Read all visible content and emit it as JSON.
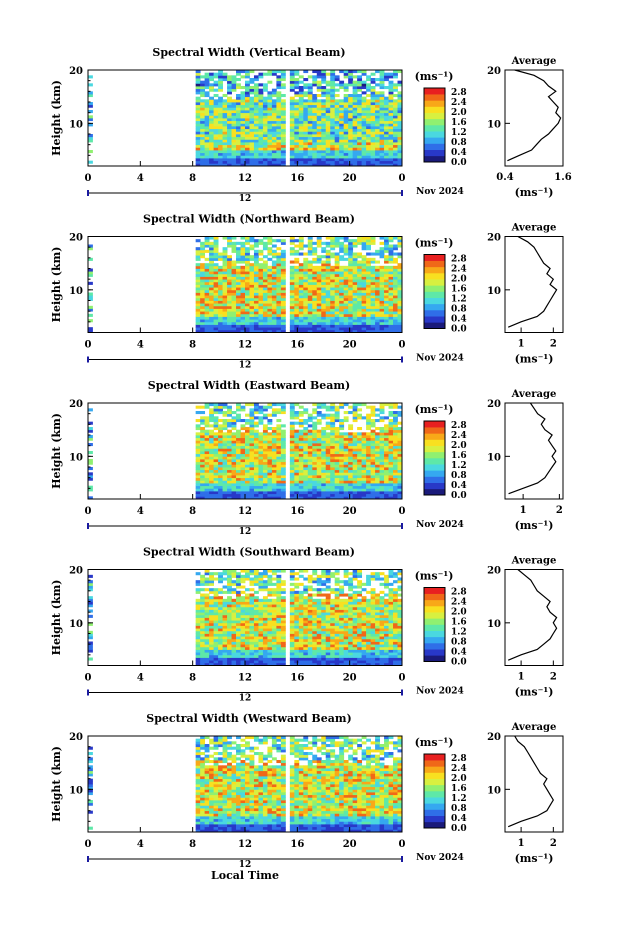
{
  "figure": {
    "xlabel_bottom": "Local Time",
    "date_label": "Nov 2024",
    "day_marker": "12",
    "average_title": "Average",
    "colorbar_unit": "(ms⁻¹)",
    "avg_xlabel": "(ms⁻¹)"
  },
  "colormap": [
    "#1a1a7a",
    "#2838c8",
    "#2f6ee8",
    "#35a8f0",
    "#4ad8e0",
    "#5ee8a8",
    "#90f070",
    "#d8f040",
    "#f8e020",
    "#f8a818",
    "#f06818",
    "#e82020"
  ],
  "chart_data": [
    {
      "type": "heatmap",
      "title": "Spectral Width (Vertical Beam)",
      "xlabel": "",
      "ylabel": "Height (km)",
      "xticks": [
        "0",
        "4",
        "8",
        "12",
        "16",
        "20",
        "0"
      ],
      "xlim": [
        0,
        24
      ],
      "ylim": [
        2,
        20
      ],
      "yticks": [
        "20",
        "10"
      ],
      "colorbar_ticks": [
        "2.8",
        "2.4",
        "2.0",
        "1.6",
        "1.2",
        "0.8",
        "0.4",
        "0.0"
      ],
      "colorbar_range": [
        0,
        2.8
      ],
      "data_gap_hours": [
        0.3,
        8.0
      ],
      "average_profile": {
        "xticks": [
          "0.4",
          "1.6"
        ],
        "xlim": [
          0.4,
          1.6
        ],
        "height": [
          3,
          4,
          5,
          6,
          7,
          8,
          9,
          10,
          11,
          12,
          13,
          14,
          15,
          16,
          17,
          18,
          19,
          20
        ],
        "width": [
          0.45,
          0.7,
          0.95,
          1.05,
          1.15,
          1.3,
          1.4,
          1.5,
          1.55,
          1.45,
          1.5,
          1.4,
          1.3,
          1.45,
          1.3,
          1.2,
          1.0,
          0.6
        ]
      }
    },
    {
      "type": "heatmap",
      "title": "Spectral Width (Northward Beam)",
      "xlabel": "",
      "ylabel": "Height (km)",
      "xticks": [
        "0",
        "4",
        "8",
        "12",
        "16",
        "20",
        "0"
      ],
      "xlim": [
        0,
        24
      ],
      "ylim": [
        2,
        20
      ],
      "yticks": [
        "20",
        "10"
      ],
      "colorbar_ticks": [
        "2.8",
        "2.4",
        "2.0",
        "1.6",
        "1.2",
        "0.8",
        "0.4",
        "0.0"
      ],
      "colorbar_range": [
        0,
        2.8
      ],
      "data_gap_hours": [
        0.3,
        8.0
      ],
      "average_profile": {
        "xticks": [
          "1",
          "2"
        ],
        "xlim": [
          0.5,
          2.3
        ],
        "height": [
          3,
          4,
          5,
          6,
          7,
          8,
          9,
          10,
          11,
          12,
          13,
          14,
          15,
          16,
          17,
          18,
          19,
          20
        ],
        "width": [
          0.6,
          1.0,
          1.5,
          1.7,
          1.8,
          1.9,
          2.0,
          2.1,
          1.9,
          2.0,
          1.8,
          1.9,
          1.7,
          1.6,
          1.5,
          1.4,
          1.2,
          0.9
        ]
      }
    },
    {
      "type": "heatmap",
      "title": "Spectral Width (Eastward Beam)",
      "xlabel": "",
      "ylabel": "Height (km)",
      "xticks": [
        "0",
        "4",
        "8",
        "12",
        "16",
        "20",
        "0"
      ],
      "xlim": [
        0,
        24
      ],
      "ylim": [
        2,
        20
      ],
      "yticks": [
        "20",
        "10"
      ],
      "colorbar_ticks": [
        "2.8",
        "2.4",
        "2.0",
        "1.6",
        "1.2",
        "0.8",
        "0.4",
        "0.0"
      ],
      "colorbar_range": [
        0,
        2.8
      ],
      "data_gap_hours": [
        0.3,
        8.0
      ],
      "average_profile": {
        "xticks": [
          "1",
          "2"
        ],
        "xlim": [
          0.5,
          2.1
        ],
        "height": [
          3,
          4,
          5,
          6,
          7,
          8,
          9,
          10,
          11,
          12,
          13,
          14,
          15,
          16,
          17,
          18,
          19,
          20
        ],
        "width": [
          0.6,
          1.0,
          1.4,
          1.6,
          1.7,
          1.8,
          1.9,
          1.8,
          1.9,
          1.8,
          1.7,
          1.8,
          1.6,
          1.5,
          1.6,
          1.4,
          1.3,
          1.2
        ]
      }
    },
    {
      "type": "heatmap",
      "title": "Spectral Width (Southward Beam)",
      "xlabel": "",
      "ylabel": "Height (km)",
      "xticks": [
        "0",
        "4",
        "8",
        "12",
        "16",
        "20",
        "0"
      ],
      "xlim": [
        0,
        24
      ],
      "ylim": [
        2,
        20
      ],
      "yticks": [
        "20",
        "10"
      ],
      "colorbar_ticks": [
        "2.8",
        "2.4",
        "2.0",
        "1.6",
        "1.2",
        "0.8",
        "0.4",
        "0.0"
      ],
      "colorbar_range": [
        0,
        2.8
      ],
      "data_gap_hours": [
        0.3,
        8.0
      ],
      "average_profile": {
        "xticks": [
          "1",
          "2"
        ],
        "xlim": [
          0.5,
          2.3
        ],
        "height": [
          3,
          4,
          5,
          6,
          7,
          8,
          9,
          10,
          11,
          12,
          13,
          14,
          15,
          16,
          17,
          18,
          19,
          20
        ],
        "width": [
          0.6,
          1.0,
          1.5,
          1.7,
          1.9,
          2.0,
          2.1,
          2.0,
          2.1,
          1.9,
          1.8,
          1.9,
          1.7,
          1.5,
          1.4,
          1.3,
          1.1,
          0.9
        ]
      }
    },
    {
      "type": "heatmap",
      "title": "Spectral Width (Westward Beam)",
      "xlabel": "",
      "ylabel": "Height (km)",
      "xticks": [
        "0",
        "4",
        "8",
        "12",
        "16",
        "20",
        "0"
      ],
      "xlim": [
        0,
        24
      ],
      "ylim": [
        2,
        20
      ],
      "yticks": [
        "20",
        "10"
      ],
      "colorbar_ticks": [
        "2.8",
        "2.4",
        "2.0",
        "1.6",
        "1.2",
        "0.8",
        "0.4",
        "0.0"
      ],
      "colorbar_range": [
        0,
        2.8
      ],
      "data_gap_hours": [
        0.3,
        8.0
      ],
      "average_profile": {
        "xticks": [
          "1",
          "2"
        ],
        "xlim": [
          0.5,
          2.3
        ],
        "height": [
          3,
          4,
          5,
          6,
          7,
          8,
          9,
          10,
          11,
          12,
          13,
          14,
          15,
          16,
          17,
          18,
          19,
          20
        ],
        "width": [
          0.6,
          1.0,
          1.5,
          1.8,
          1.9,
          2.0,
          1.9,
          1.8,
          1.7,
          1.8,
          1.6,
          1.5,
          1.4,
          1.3,
          1.2,
          1.1,
          0.9,
          0.8
        ]
      }
    }
  ]
}
